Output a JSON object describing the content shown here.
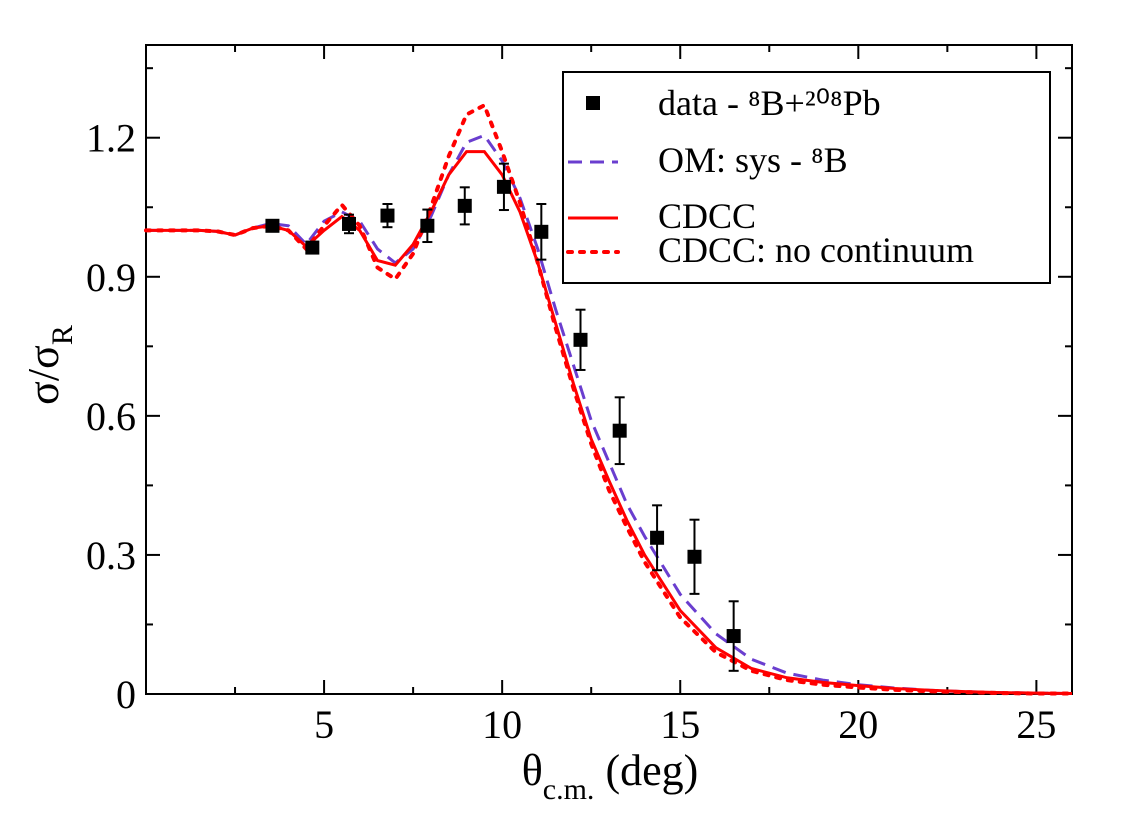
{
  "chart_data": {
    "type": "scatter-line",
    "xlabel": {
      "text": "θ",
      "sub": "c.m.",
      "tail": " (deg)"
    },
    "ylabel": {
      "text": "σ/σ",
      "sub": "R"
    },
    "xlim": [
      0,
      26
    ],
    "ylim": [
      0,
      1.4
    ],
    "xticks": [
      5,
      10,
      15,
      20,
      25
    ],
    "xminorticks": [
      2.5,
      7.5,
      12.5,
      17.5,
      22.5
    ],
    "yticks": [
      0,
      0.3,
      0.6,
      0.9,
      1.2
    ],
    "yminorticks": [
      0.15,
      0.45,
      0.75,
      1.05,
      1.35
    ],
    "x": [
      0,
      0.5,
      1,
      1.5,
      2,
      2.5,
      3,
      3.5,
      4,
      4.5,
      5,
      5.5,
      6,
      6.5,
      7,
      7.5,
      8,
      8.5,
      9,
      9.5,
      10,
      10.5,
      11,
      11.5,
      12,
      12.5,
      13,
      13.5,
      14,
      15,
      16,
      17,
      18,
      19,
      20,
      21,
      22,
      23,
      24,
      25,
      26
    ],
    "series": [
      {
        "name": "data - ⁸B+²⁰⁸Pb",
        "type": "scatter",
        "color": "#000000",
        "x": [
          3.55,
          4.67,
          5.7,
          6.78,
          7.9,
          8.95,
          10.05,
          11.1,
          12.2,
          13.3,
          14.35,
          15.4,
          16.5
        ],
        "values": [
          1.01,
          0.963,
          1.014,
          1.032,
          1.01,
          1.053,
          1.094,
          0.997,
          0.764,
          0.568,
          0.337,
          0.296,
          0.125
        ],
        "errors": [
          0.01,
          0.01,
          0.02,
          0.025,
          0.035,
          0.04,
          0.05,
          0.06,
          0.065,
          0.072,
          0.07,
          0.08,
          0.075
        ]
      },
      {
        "name": "OM: sys - ⁸B",
        "type": "line",
        "style": "dashed",
        "color": "#6a3ecf",
        "values": [
          1,
          1,
          1,
          1,
          0.998,
          0.99,
          1.005,
          1.015,
          1.01,
          0.97,
          1.02,
          1.04,
          1.02,
          0.96,
          0.93,
          0.96,
          1.03,
          1.12,
          1.19,
          1.205,
          1.15,
          1.07,
          0.96,
          0.83,
          0.71,
          0.59,
          0.5,
          0.41,
          0.34,
          0.215,
          0.13,
          0.075,
          0.045,
          0.03,
          0.02,
          0.013,
          0.008,
          0.005,
          0.003,
          0.002,
          0.001
        ]
      },
      {
        "name": "CDCC",
        "type": "line",
        "style": "solid",
        "color": "#ff0000",
        "values": [
          1,
          1,
          1,
          1,
          0.998,
          0.99,
          1.005,
          1.01,
          1.0,
          0.965,
          1.0,
          1.03,
          1.0,
          0.935,
          0.925,
          0.97,
          1.04,
          1.12,
          1.17,
          1.17,
          1.12,
          1.04,
          0.93,
          0.8,
          0.67,
          0.55,
          0.46,
          0.375,
          0.3,
          0.18,
          0.1,
          0.055,
          0.035,
          0.025,
          0.018,
          0.012,
          0.008,
          0.005,
          0.003,
          0.002,
          0.001
        ]
      },
      {
        "name": "CDCC: no continuum",
        "type": "line",
        "style": "dotted",
        "color": "#ff0000",
        "values": [
          1,
          1,
          1,
          1,
          0.998,
          0.99,
          1.005,
          1.01,
          1.0,
          0.96,
          1.01,
          1.055,
          1.01,
          0.92,
          0.895,
          0.95,
          1.05,
          1.16,
          1.25,
          1.27,
          1.17,
          1.06,
          0.93,
          0.79,
          0.66,
          0.54,
          0.44,
          0.36,
          0.285,
          0.165,
          0.09,
          0.05,
          0.03,
          0.02,
          0.014,
          0.009,
          0.006,
          0.004,
          0.002,
          0.001,
          0.001
        ]
      }
    ],
    "legend": "upper right"
  }
}
